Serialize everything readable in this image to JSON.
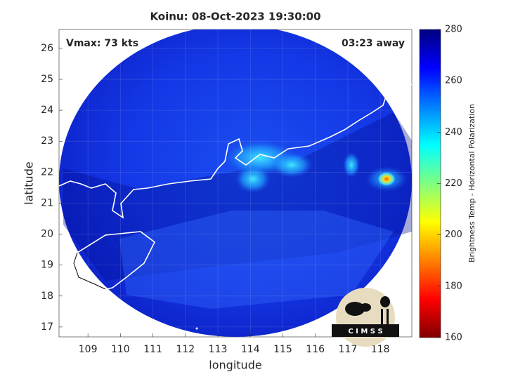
{
  "chart_data": {
    "type": "map",
    "title": "Koinu: 08-Oct-2023 19:30:00",
    "annotations": [
      "Vmax: 73 kts",
      "03:23 away"
    ],
    "logo": "C I M S S",
    "xlabel": "longitude",
    "ylabel": "latitude",
    "xlim": [
      108.11,
      118.97
    ],
    "xticks": [
      109,
      110,
      111,
      112,
      113,
      114,
      115,
      116,
      117,
      118
    ],
    "ylim": [
      16.68,
      26.61
    ],
    "yticks": [
      17,
      18,
      19,
      20,
      21,
      22,
      23,
      24,
      25,
      26
    ],
    "grid": true,
    "colorbar": {
      "label": "Brightness Temp - Horizontal Polarization",
      "lim": [
        160,
        280
      ],
      "ticks": [
        160,
        180,
        200,
        220,
        240,
        260,
        280
      ],
      "colormap": [
        "#800000",
        "#ff0000",
        "#ff8000",
        "#ffff00",
        "#80ff80",
        "#00ffff",
        "#0080ff",
        "#0000ff",
        "#000080"
      ]
    }
  }
}
